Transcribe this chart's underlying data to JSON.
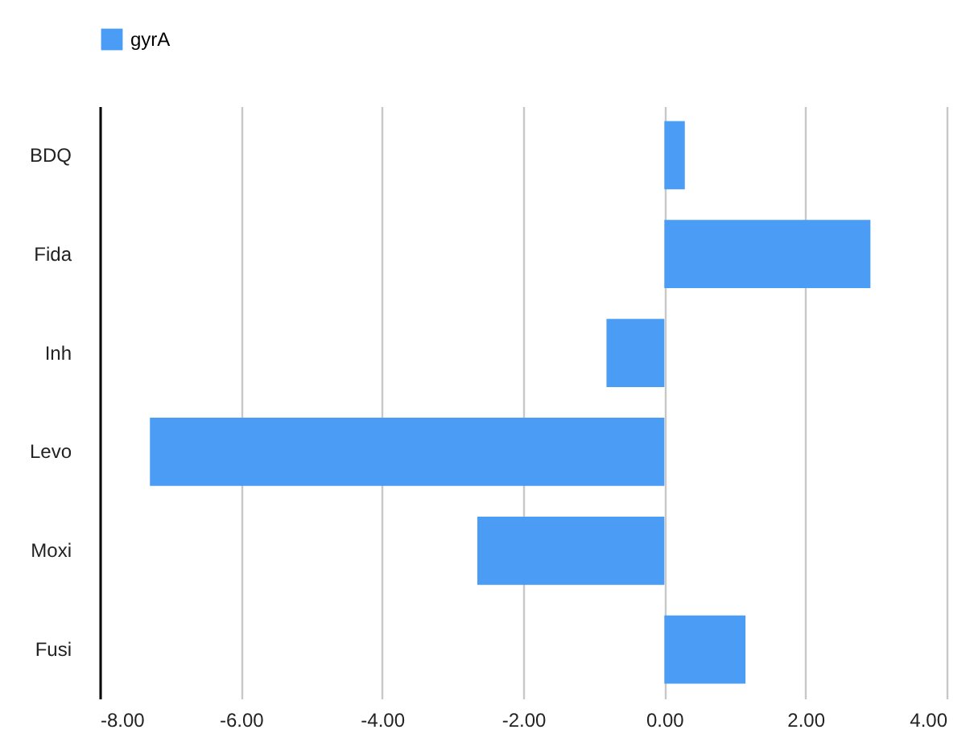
{
  "chart_data": {
    "type": "bar",
    "orientation": "horizontal",
    "categories": [
      "BDQ",
      "Fida",
      "Inh",
      "Levo",
      "Moxi",
      "Fusi"
    ],
    "series": [
      {
        "name": "gyrA",
        "color": "#4a9cf5",
        "values": [
          0.29,
          2.92,
          -0.82,
          -7.29,
          -2.65,
          1.15
        ]
      }
    ],
    "xlim": [
      -8,
      4
    ],
    "xticks": [
      {
        "value": -8,
        "label": "-8.00"
      },
      {
        "value": -6,
        "label": "-6.00"
      },
      {
        "value": -4,
        "label": "-4.00"
      },
      {
        "value": -2,
        "label": "-2.00"
      },
      {
        "value": 0,
        "label": "0.00"
      },
      {
        "value": 2,
        "label": "2.00"
      },
      {
        "value": 4,
        "label": "4.00"
      }
    ],
    "grid": "x",
    "legend": "top"
  }
}
